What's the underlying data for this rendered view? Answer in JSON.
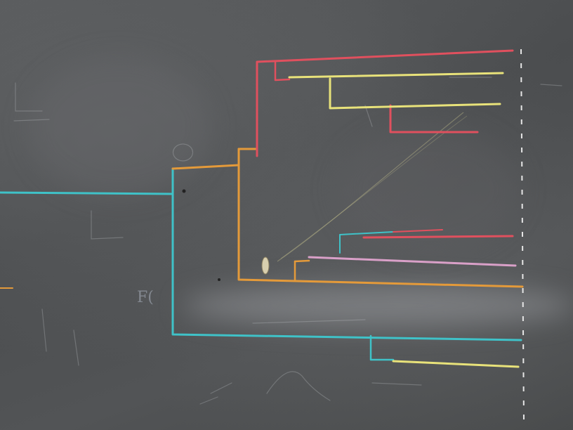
{
  "scene": {
    "subject": "chalkboard",
    "colors": {
      "board": "#4f5153",
      "red": "#e0505e",
      "yellow": "#e8e27a",
      "orange": "#e49a3a",
      "cyan": "#3fc2c8",
      "pink": "#d9a0c8",
      "chalk_white": "#e6e6e6"
    }
  }
}
